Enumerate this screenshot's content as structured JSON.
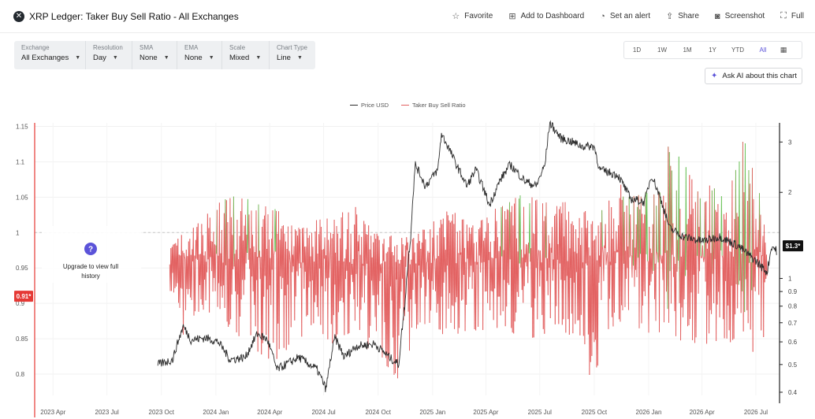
{
  "header": {
    "title": "XRP Ledger: Taker Buy Sell Ratio - All Exchanges",
    "logo_icon": "xrp-logo-icon",
    "actions": [
      {
        "label": "Favorite",
        "icon": "star-icon",
        "glyph": "☆"
      },
      {
        "label": "Add to Dashboard",
        "icon": "dashboard-add-icon",
        "glyph": "⊞"
      },
      {
        "label": "Set an alert",
        "icon": "bell-icon",
        "glyph": "◔"
      },
      {
        "label": "Share",
        "icon": "share-icon",
        "glyph": "⇪"
      },
      {
        "label": "Screenshot",
        "icon": "camera-icon",
        "glyph": "◙"
      },
      {
        "label": "Full",
        "icon": "fullscreen-icon",
        "glyph": "⛶"
      }
    ]
  },
  "controls": [
    {
      "label": "Exchange",
      "value": "All Exchanges"
    },
    {
      "label": "Resolution",
      "value": "Day"
    },
    {
      "label": "SMA",
      "value": "None"
    },
    {
      "label": "EMA",
      "value": "None"
    },
    {
      "label": "Scale",
      "value": "Mixed"
    },
    {
      "label": "Chart Type",
      "value": "Line"
    }
  ],
  "ranges": {
    "items": [
      "1D",
      "1W",
      "1M",
      "1Y",
      "YTD",
      "All"
    ],
    "active": "All",
    "calendar_icon": "calendar-icon"
  },
  "ask_ai": {
    "label": "Ask AI about this chart",
    "icon": "sparkle-icon"
  },
  "upgrade": {
    "text_line1": "Upgrade to view full",
    "text_line2": "history",
    "icon": "question-icon",
    "glyph": "?"
  },
  "colors": {
    "price": "#2b2b2b",
    "ratio_above": "#6cc25a",
    "ratio_below": "#e25f5f",
    "left_marker": "#e53935",
    "accent": "#5b53d9"
  },
  "chart_data": {
    "type": "line",
    "legend": [
      "Price USD",
      "Taker Buy Sell Ratio"
    ],
    "x_ticks": [
      "2023 Apr",
      "2023 Jul",
      "2023 Oct",
      "2024 Jan",
      "2024 Apr",
      "2024 Jul",
      "2024 Oct",
      "2025 Jan",
      "2025 Apr",
      "2025 Jul",
      "2025 Oct",
      "2026 Jan",
      "2026 Apr",
      "2026 Jul"
    ],
    "x_range": [
      "2023-03-01",
      "2026-08-10"
    ],
    "left_axis": {
      "ticks": [
        "0.8",
        "0.85",
        "0.9",
        "0.95",
        "1",
        "1.05",
        "1.1",
        "1.15"
      ],
      "range": [
        0.77,
        1.155
      ],
      "current_label": "0.91*"
    },
    "right_axis": {
      "scale": "log",
      "ticks": [
        "0.4",
        "0.5",
        "0.6",
        "0.7",
        "0.8",
        "0.9",
        "1",
        "2",
        "3"
      ],
      "range": [
        0.39,
        3.5
      ],
      "current_label": "$1.3*"
    },
    "reference_line": 1,
    "price_anchors": [
      {
        "date": "2023-09-25",
        "value": 0.5
      },
      {
        "date": "2023-10-20",
        "value": 0.52
      },
      {
        "date": "2023-11-07",
        "value": 0.68
      },
      {
        "date": "2023-11-20",
        "value": 0.61
      },
      {
        "date": "2023-12-15",
        "value": 0.62
      },
      {
        "date": "2024-01-05",
        "value": 0.6
      },
      {
        "date": "2024-01-25",
        "value": 0.52
      },
      {
        "date": "2024-02-20",
        "value": 0.53
      },
      {
        "date": "2024-03-11",
        "value": 0.64
      },
      {
        "date": "2024-03-28",
        "value": 0.61
      },
      {
        "date": "2024-04-13",
        "value": 0.48
      },
      {
        "date": "2024-05-20",
        "value": 0.53
      },
      {
        "date": "2024-06-20",
        "value": 0.48
      },
      {
        "date": "2024-07-05",
        "value": 0.41
      },
      {
        "date": "2024-07-20",
        "value": 0.62
      },
      {
        "date": "2024-08-05",
        "value": 0.53
      },
      {
        "date": "2024-08-25",
        "value": 0.58
      },
      {
        "date": "2024-09-25",
        "value": 0.59
      },
      {
        "date": "2024-10-20",
        "value": 0.53
      },
      {
        "date": "2024-11-05",
        "value": 0.5
      },
      {
        "date": "2024-11-15",
        "value": 0.8
      },
      {
        "date": "2024-11-25",
        "value": 1.4
      },
      {
        "date": "2024-12-03",
        "value": 2.5
      },
      {
        "date": "2024-12-20",
        "value": 2.1
      },
      {
        "date": "2025-01-10",
        "value": 2.4
      },
      {
        "date": "2025-01-16",
        "value": 3.2
      },
      {
        "date": "2025-02-10",
        "value": 2.5
      },
      {
        "date": "2025-02-28",
        "value": 2.1
      },
      {
        "date": "2025-03-15",
        "value": 2.4
      },
      {
        "date": "2025-04-07",
        "value": 1.8
      },
      {
        "date": "2025-04-25",
        "value": 2.2
      },
      {
        "date": "2025-05-12",
        "value": 2.5
      },
      {
        "date": "2025-06-05",
        "value": 2.2
      },
      {
        "date": "2025-06-25",
        "value": 2.1
      },
      {
        "date": "2025-07-10",
        "value": 2.5
      },
      {
        "date": "2025-07-18",
        "value": 3.5
      },
      {
        "date": "2025-08-05",
        "value": 3.1
      },
      {
        "date": "2025-08-25",
        "value": 3.0
      },
      {
        "date": "2025-09-10",
        "value": 2.9
      },
      {
        "date": "2025-10-01",
        "value": 2.9
      },
      {
        "date": "2025-10-10",
        "value": 2.4
      },
      {
        "date": "2025-11-10",
        "value": 2.3
      },
      {
        "date": "2025-12-01",
        "value": 1.9
      },
      {
        "date": "2025-12-25",
        "value": 1.85
      },
      {
        "date": "2026-01-06",
        "value": 2.3
      },
      {
        "date": "2026-02-05",
        "value": 1.5
      },
      {
        "date": "2026-03-01",
        "value": 1.4
      },
      {
        "date": "2026-04-01",
        "value": 1.35
      },
      {
        "date": "2026-05-01",
        "value": 1.4
      },
      {
        "date": "2026-06-01",
        "value": 1.3
      },
      {
        "date": "2026-07-01",
        "value": 1.15
      },
      {
        "date": "2026-07-20",
        "value": 1.05
      },
      {
        "date": "2026-07-28",
        "value": 1.3
      },
      {
        "date": "2026-08-05",
        "value": 1.25
      }
    ],
    "ratio_anchors": [
      {
        "date": "2023-10-15",
        "high": 0.985,
        "low": 0.9
      },
      {
        "date": "2023-11-05",
        "high": 1.0,
        "low": 0.85
      },
      {
        "date": "2023-12-10",
        "high": 1.02,
        "low": 0.89
      },
      {
        "date": "2024-01-15",
        "high": 1.055,
        "low": 0.87
      },
      {
        "date": "2024-03-01",
        "high": 1.05,
        "low": 0.84
      },
      {
        "date": "2024-04-05",
        "high": 1.04,
        "low": 0.81
      },
      {
        "date": "2024-05-10",
        "high": 1.01,
        "low": 0.84
      },
      {
        "date": "2024-06-20",
        "high": 1.03,
        "low": 0.86
      },
      {
        "date": "2024-07-15",
        "high": 1.02,
        "low": 0.84
      },
      {
        "date": "2024-08-20",
        "high": 1.04,
        "low": 0.86
      },
      {
        "date": "2024-10-01",
        "high": 1.0,
        "low": 0.82
      },
      {
        "date": "2024-11-05",
        "high": 0.995,
        "low": 0.79
      },
      {
        "date": "2024-12-10",
        "high": 1.0,
        "low": 0.87
      },
      {
        "date": "2025-02-01",
        "high": 1.04,
        "low": 0.85
      },
      {
        "date": "2025-03-15",
        "high": 1.01,
        "low": 0.86
      },
      {
        "date": "2025-05-01",
        "high": 1.05,
        "low": 0.86
      },
      {
        "date": "2025-06-15",
        "high": 1.06,
        "low": 0.85
      },
      {
        "date": "2025-07-20",
        "high": 1.04,
        "low": 0.86
      },
      {
        "date": "2025-09-05",
        "high": 1.05,
        "low": 0.85
      },
      {
        "date": "2025-09-25",
        "high": 1.02,
        "low": 0.79
      },
      {
        "date": "2025-11-15",
        "high": 1.07,
        "low": 0.85
      },
      {
        "date": "2026-01-10",
        "high": 1.06,
        "low": 0.86
      },
      {
        "date": "2026-02-05",
        "high": 1.13,
        "low": 0.85
      },
      {
        "date": "2026-03-25",
        "high": 1.08,
        "low": 0.84
      },
      {
        "date": "2026-05-15",
        "high": 1.05,
        "low": 0.84
      },
      {
        "date": "2026-06-08",
        "high": 1.14,
        "low": 0.85
      },
      {
        "date": "2026-07-20",
        "high": 1.03,
        "low": 0.8
      }
    ]
  }
}
